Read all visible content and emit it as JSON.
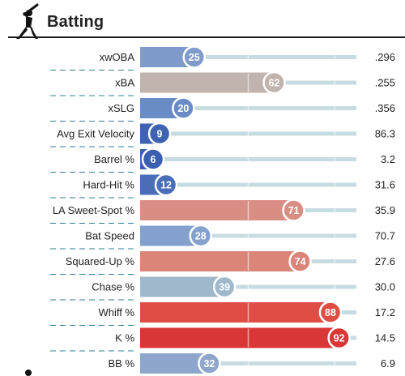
{
  "section": {
    "title": "Batting",
    "icon": "batter-icon"
  },
  "chart_data": {
    "type": "bar",
    "orientation": "horizontal",
    "title": "Batting",
    "xlim": [
      0,
      100
    ],
    "value_label": "percentile",
    "grid": false,
    "rows": [
      {
        "label": "xwOBA",
        "percentile": 25,
        "value": ".296",
        "color": "#7f9bcb"
      },
      {
        "label": "xBA",
        "percentile": 62,
        "value": ".255",
        "color": "#c1b3ae"
      },
      {
        "label": "xSLG",
        "percentile": 20,
        "value": ".356",
        "color": "#6a8cc6"
      },
      {
        "label": "Avg Exit Velocity",
        "percentile": 9,
        "value": "86.3",
        "color": "#3e63b3"
      },
      {
        "label": "Barrel %",
        "percentile": 6,
        "value": "3.2",
        "color": "#3a5fb1"
      },
      {
        "label": "Hard-Hit %",
        "percentile": 12,
        "value": "31.6",
        "color": "#4a6db8"
      },
      {
        "label": "LA Sweet-Spot %",
        "percentile": 71,
        "value": "35.9",
        "color": "#d98e83"
      },
      {
        "label": "Bat Speed",
        "percentile": 28,
        "value": "70.7",
        "color": "#84a0cd"
      },
      {
        "label": "Squared-Up %",
        "percentile": 74,
        "value": "27.6",
        "color": "#db8578"
      },
      {
        "label": "Chase %",
        "percentile": 39,
        "value": "30.0",
        "color": "#9fb8cb"
      },
      {
        "label": "Whiff %",
        "percentile": 88,
        "value": "17.2",
        "color": "#df4d44"
      },
      {
        "label": "K %",
        "percentile": 92,
        "value": "14.5",
        "color": "#d93636"
      },
      {
        "label": "BB %",
        "percentile": 32,
        "value": "6.9",
        "color": "#8ea6cb"
      }
    ]
  },
  "colors": {
    "track": "#c7dce2",
    "divider": "#2f7f95",
    "header_rule": "#1a1a1a"
  }
}
